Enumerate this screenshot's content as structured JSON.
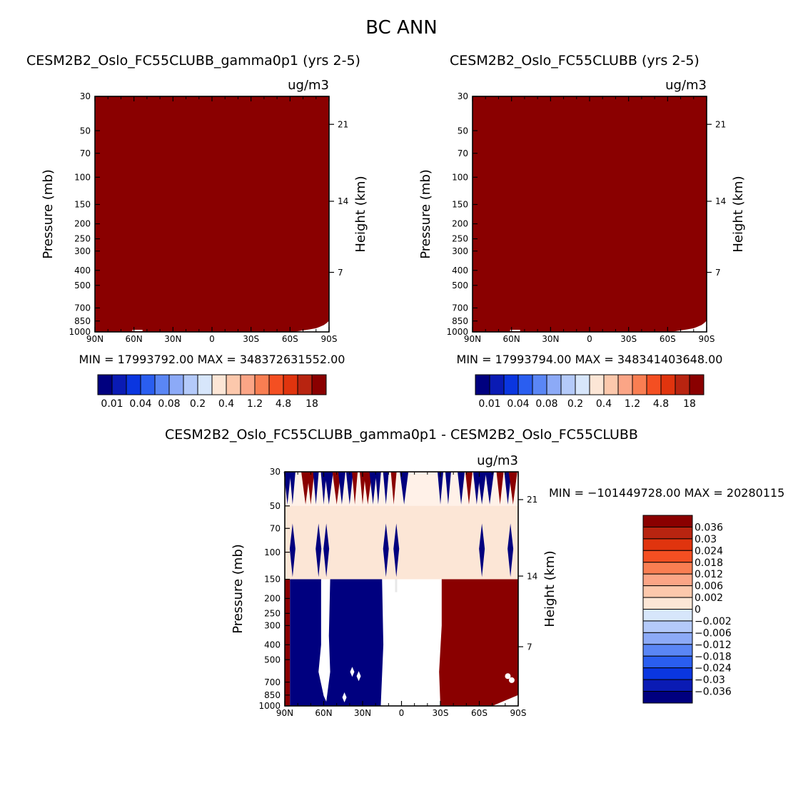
{
  "figure": {
    "title": "BC ANN"
  },
  "panels": {
    "left": {
      "title": "CESM2B2_Oslo_FC55CLUBB_gamma0p1 (yrs 2-5)",
      "units": "ug/m3",
      "ylabel": "Pressure (mb)",
      "ylabel_right": "Height (km)",
      "stats": "MIN = 17993792.00   MAX = 348372631552.00"
    },
    "right": {
      "title": "CESM2B2_Oslo_FC55CLUBB (yrs 2-5)",
      "units": "ug/m3",
      "ylabel": "Pressure (mb)",
      "ylabel_right": "Height (km)",
      "stats": "MIN = 17993794.00   MAX = 348341403648.00"
    },
    "diff": {
      "title": "CESM2B2_Oslo_FC55CLUBB_gamma0p1 - CESM2B2_Oslo_FC55CLUBB",
      "units": "ug/m3",
      "ylabel": "Pressure (mb)",
      "ylabel_right": "Height (km)",
      "stats": "MIN = −101449728.00   MAX = 20280115"
    }
  },
  "chart_data": [
    {
      "type": "heatmap",
      "panel": "left",
      "title": "CESM2B2_Oslo_FC55CLUBB_gamma0p1 (yrs 2-5)",
      "units": "ug/m3",
      "xlabel": "",
      "ylabel": "Pressure (mb)",
      "ylabel_right": "Height (km)",
      "x_ticks": [
        "90N",
        "60N",
        "30N",
        "0",
        "30S",
        "60S",
        "90S"
      ],
      "y_ticks": [
        "30",
        "50",
        "70",
        "100",
        "150",
        "200",
        "250",
        "300",
        "400",
        "500",
        "700",
        "850",
        "1000"
      ],
      "y_right_ticks": [
        "21",
        "14",
        "7"
      ],
      "y_scale": "log",
      "min": 17993792.0,
      "max": 348372631552.0,
      "field": "nearly uniform, above top contour level (18) everywhere; white gap near surface at 60S-90S"
    },
    {
      "type": "heatmap",
      "panel": "right",
      "title": "CESM2B2_Oslo_FC55CLUBB (yrs 2-5)",
      "units": "ug/m3",
      "xlabel": "",
      "ylabel": "Pressure (mb)",
      "ylabel_right": "Height (km)",
      "x_ticks": [
        "90N",
        "60N",
        "30N",
        "0",
        "30S",
        "60S",
        "90S"
      ],
      "y_ticks": [
        "30",
        "50",
        "70",
        "100",
        "150",
        "200",
        "250",
        "300",
        "400",
        "500",
        "700",
        "850",
        "1000"
      ],
      "y_right_ticks": [
        "21",
        "14",
        "7"
      ],
      "y_scale": "log",
      "min": 17993794.0,
      "max": 348341403648.0,
      "field": "nearly uniform, above top contour level (18) everywhere; white gap near surface at 60S-90S"
    },
    {
      "type": "heatmap",
      "panel": "diff",
      "title": "CESM2B2_Oslo_FC55CLUBB_gamma0p1 - CESM2B2_Oslo_FC55CLUBB",
      "units": "ug/m3",
      "xlabel": "",
      "ylabel": "Pressure (mb)",
      "ylabel_right": "Height (km)",
      "x_ticks": [
        "90N",
        "60N",
        "30N",
        "0",
        "30S",
        "60S",
        "90S"
      ],
      "y_ticks": [
        "30",
        "50",
        "70",
        "100",
        "150",
        "200",
        "250",
        "300",
        "400",
        "500",
        "700",
        "850",
        "1000"
      ],
      "y_right_ticks": [
        "21",
        "14",
        "7"
      ],
      "y_scale": "log",
      "min": -101449728.0,
      "max": 20280115,
      "field": "below 150 mb: strong negative from 90N to ~15N, strong positive from ~30S to 90S; above 150 mb: weak positive with alternating spikes"
    }
  ],
  "colorbars": {
    "abs": {
      "labels": [
        "0.01",
        "0.04",
        "0.08",
        "0.2",
        "0.4",
        "1.2",
        "4.8",
        "18"
      ],
      "colors": [
        "#00007f",
        "#0a1bb4",
        "#0a36e0",
        "#2a5ef0",
        "#5a86f5",
        "#8caaf7",
        "#b4cafa",
        "#d7e6fb",
        "#fce6d6",
        "#fcc8ac",
        "#fba586",
        "#f97e52",
        "#f44f22",
        "#e0340e",
        "#b82410",
        "#8a0000"
      ]
    },
    "diff": {
      "labels": [
        "0.036",
        "0.03",
        "0.024",
        "0.018",
        "0.012",
        "0.006",
        "0.002",
        "0",
        "−0.002",
        "−0.006",
        "−0.012",
        "−0.018",
        "−0.024",
        "−0.03",
        "−0.036"
      ],
      "colors": [
        "#8a0000",
        "#b82410",
        "#e0340e",
        "#f44f22",
        "#f97e52",
        "#fba586",
        "#fcc8ac",
        "#fce6d6",
        "#d7e6fb",
        "#b4cafa",
        "#8caaf7",
        "#5a86f5",
        "#2a5ef0",
        "#0a36e0",
        "#0a1bb4",
        "#00007f"
      ]
    }
  }
}
